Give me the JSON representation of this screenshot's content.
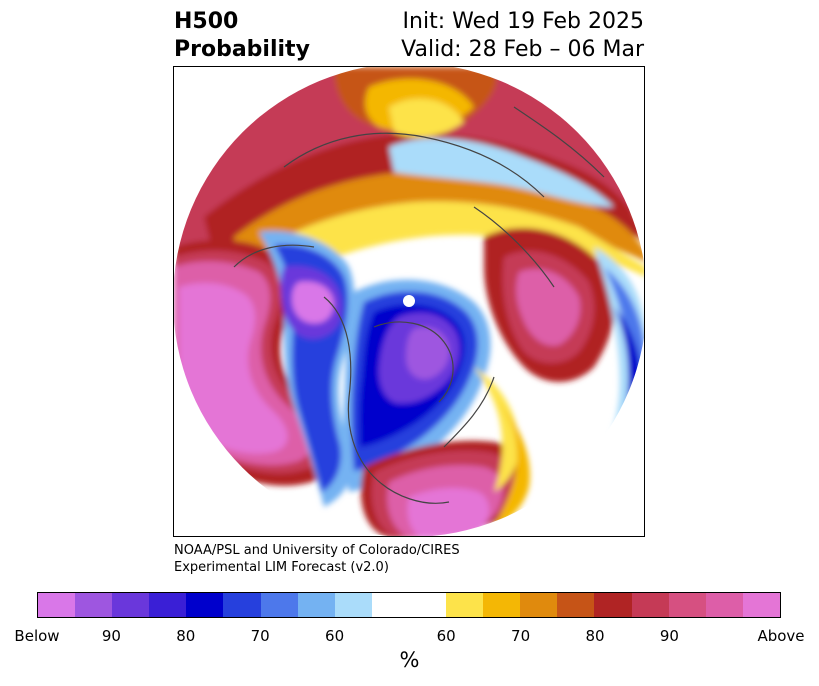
{
  "title": {
    "left_line1": "H500",
    "left_line2": "Probability",
    "right_line1": "Init: Wed 19 Feb 2025",
    "right_line2": "Valid: 28 Feb – 06 Mar"
  },
  "credit": {
    "line1": "NOAA/PSL and University of Colorado/CIRES",
    "line2": "Experimental LIM Forecast (v2.0)"
  },
  "colorbar": {
    "below_colors": [
      "#d977e8",
      "#9e56e0",
      "#6a37db",
      "#3a1fd6",
      "#0000cc",
      "#2640dd",
      "#4d78eb",
      "#74b2f2",
      "#aadcfa"
    ],
    "neutral_color": "#ffffff",
    "above_colors": [
      "#fde34a",
      "#f4b705",
      "#e08a0d",
      "#c65417",
      "#b02424",
      "#c53a56",
      "#d65081",
      "#dd5ea8",
      "#e475d6"
    ],
    "tick_labels": [
      "Below",
      "90",
      "80",
      "70",
      "60",
      "60",
      "70",
      "80",
      "90",
      "Above"
    ],
    "unit": "%"
  },
  "map": {
    "projection": "north-polar-stereographic",
    "pole_marker_color": "#ffffff",
    "land_outline_color": "#444444"
  }
}
